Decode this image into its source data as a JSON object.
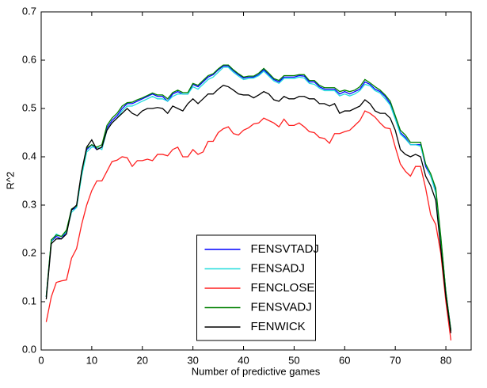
{
  "chart_data": {
    "type": "line",
    "xlabel": "Number of predictive games",
    "ylabel": "R^2",
    "x": [
      1,
      2,
      3,
      4,
      5,
      6,
      7,
      8,
      9,
      10,
      11,
      12,
      13,
      14,
      15,
      16,
      17,
      18,
      19,
      20,
      21,
      22,
      23,
      24,
      25,
      26,
      27,
      28,
      29,
      30,
      31,
      32,
      33,
      34,
      35,
      36,
      37,
      38,
      39,
      40,
      41,
      42,
      43,
      44,
      45,
      46,
      47,
      48,
      49,
      50,
      51,
      52,
      53,
      54,
      55,
      56,
      57,
      58,
      59,
      60,
      61,
      62,
      63,
      64,
      65,
      66,
      67,
      68,
      69,
      70,
      71,
      72,
      73,
      74,
      75,
      76,
      77,
      78,
      79,
      80,
      81
    ],
    "series": [
      {
        "name": "FENSVTADJ",
        "color": "#0000ff",
        "values": [
          0.11,
          0.225,
          0.235,
          0.23,
          0.245,
          0.29,
          0.295,
          0.365,
          0.415,
          0.425,
          0.415,
          0.42,
          0.46,
          0.475,
          0.485,
          0.5,
          0.51,
          0.51,
          0.515,
          0.52,
          0.525,
          0.53,
          0.525,
          0.525,
          0.515,
          0.53,
          0.535,
          0.53,
          0.53,
          0.55,
          0.545,
          0.555,
          0.565,
          0.57,
          0.58,
          0.588,
          0.588,
          0.578,
          0.57,
          0.563,
          0.565,
          0.565,
          0.57,
          0.58,
          0.57,
          0.56,
          0.555,
          0.565,
          0.565,
          0.565,
          0.568,
          0.567,
          0.555,
          0.555,
          0.545,
          0.54,
          0.54,
          0.54,
          0.53,
          0.535,
          0.53,
          0.535,
          0.54,
          0.555,
          0.55,
          0.54,
          0.535,
          0.525,
          0.51,
          0.48,
          0.45,
          0.44,
          0.425,
          0.425,
          0.425,
          0.38,
          0.36,
          0.33,
          0.23,
          0.12,
          0.04
        ]
      },
      {
        "name": "FENSADJ",
        "color": "#22dddd",
        "values": [
          0.11,
          0.225,
          0.24,
          0.235,
          0.245,
          0.285,
          0.295,
          0.36,
          0.41,
          0.42,
          0.42,
          0.415,
          0.455,
          0.47,
          0.48,
          0.495,
          0.505,
          0.505,
          0.51,
          0.515,
          0.52,
          0.525,
          0.52,
          0.52,
          0.515,
          0.525,
          0.53,
          0.53,
          0.53,
          0.545,
          0.54,
          0.55,
          0.56,
          0.565,
          0.575,
          0.585,
          0.585,
          0.575,
          0.567,
          0.56,
          0.562,
          0.563,
          0.568,
          0.577,
          0.567,
          0.557,
          0.552,
          0.562,
          0.562,
          0.562,
          0.565,
          0.563,
          0.552,
          0.55,
          0.542,
          0.537,
          0.537,
          0.537,
          0.526,
          0.53,
          0.526,
          0.53,
          0.537,
          0.55,
          0.547,
          0.537,
          0.532,
          0.52,
          0.507,
          0.478,
          0.447,
          0.437,
          0.425,
          0.425,
          0.422,
          0.385,
          0.36,
          0.325,
          0.23,
          0.12,
          0.04
        ]
      },
      {
        "name": "FENCLOSE",
        "color": "#ff2020",
        "values": [
          0.058,
          0.11,
          0.14,
          0.143,
          0.145,
          0.19,
          0.21,
          0.26,
          0.3,
          0.33,
          0.35,
          0.35,
          0.37,
          0.39,
          0.393,
          0.4,
          0.398,
          0.38,
          0.392,
          0.392,
          0.395,
          0.392,
          0.405,
          0.405,
          0.402,
          0.415,
          0.42,
          0.4,
          0.4,
          0.415,
          0.405,
          0.41,
          0.432,
          0.432,
          0.45,
          0.458,
          0.462,
          0.448,
          0.445,
          0.455,
          0.46,
          0.468,
          0.47,
          0.48,
          0.475,
          0.47,
          0.462,
          0.478,
          0.465,
          0.465,
          0.47,
          0.462,
          0.452,
          0.45,
          0.44,
          0.438,
          0.428,
          0.448,
          0.448,
          0.452,
          0.455,
          0.465,
          0.475,
          0.495,
          0.49,
          0.482,
          0.47,
          0.46,
          0.458,
          0.42,
          0.385,
          0.37,
          0.36,
          0.38,
          0.38,
          0.335,
          0.28,
          0.26,
          0.2,
          0.1,
          0.02
        ]
      },
      {
        "name": "FENSVADJ",
        "color": "#008000",
        "values": [
          0.11,
          0.228,
          0.238,
          0.235,
          0.248,
          0.292,
          0.298,
          0.368,
          0.418,
          0.425,
          0.42,
          0.425,
          0.465,
          0.48,
          0.49,
          0.505,
          0.512,
          0.513,
          0.518,
          0.522,
          0.527,
          0.532,
          0.528,
          0.528,
          0.52,
          0.533,
          0.538,
          0.533,
          0.533,
          0.552,
          0.548,
          0.558,
          0.568,
          0.572,
          0.582,
          0.59,
          0.59,
          0.58,
          0.572,
          0.565,
          0.567,
          0.567,
          0.573,
          0.583,
          0.573,
          0.562,
          0.558,
          0.568,
          0.568,
          0.568,
          0.57,
          0.57,
          0.558,
          0.558,
          0.548,
          0.543,
          0.543,
          0.543,
          0.535,
          0.538,
          0.535,
          0.538,
          0.545,
          0.56,
          0.553,
          0.545,
          0.538,
          0.528,
          0.515,
          0.485,
          0.455,
          0.445,
          0.43,
          0.43,
          0.43,
          0.385,
          0.365,
          0.335,
          0.235,
          0.12,
          0.04
        ]
      },
      {
        "name": "FENWICK",
        "color": "#000000",
        "values": [
          0.105,
          0.22,
          0.23,
          0.23,
          0.24,
          0.29,
          0.3,
          0.37,
          0.42,
          0.435,
          0.415,
          0.42,
          0.455,
          0.47,
          0.48,
          0.49,
          0.5,
          0.49,
          0.485,
          0.495,
          0.5,
          0.5,
          0.502,
          0.5,
          0.49,
          0.505,
          0.5,
          0.495,
          0.51,
          0.52,
          0.51,
          0.52,
          0.53,
          0.53,
          0.54,
          0.548,
          0.545,
          0.538,
          0.53,
          0.528,
          0.528,
          0.522,
          0.528,
          0.535,
          0.53,
          0.518,
          0.515,
          0.525,
          0.52,
          0.52,
          0.525,
          0.525,
          0.52,
          0.52,
          0.51,
          0.51,
          0.505,
          0.51,
          0.49,
          0.495,
          0.495,
          0.5,
          0.505,
          0.518,
          0.51,
          0.495,
          0.49,
          0.49,
          0.48,
          0.455,
          0.415,
          0.405,
          0.4,
          0.405,
          0.4,
          0.36,
          0.34,
          0.31,
          0.21,
          0.11,
          0.035
        ]
      }
    ],
    "xlim": [
      0,
      85
    ],
    "xticks": [
      0,
      10,
      20,
      30,
      40,
      50,
      60,
      70,
      80
    ],
    "ylim": [
      0,
      0.7
    ],
    "yticks": [
      {
        "value": 0,
        "label": "0.0"
      },
      0.1,
      0.2,
      0.3,
      0.4,
      0.5,
      0.6,
      0.7
    ],
    "legend": "lower center"
  }
}
